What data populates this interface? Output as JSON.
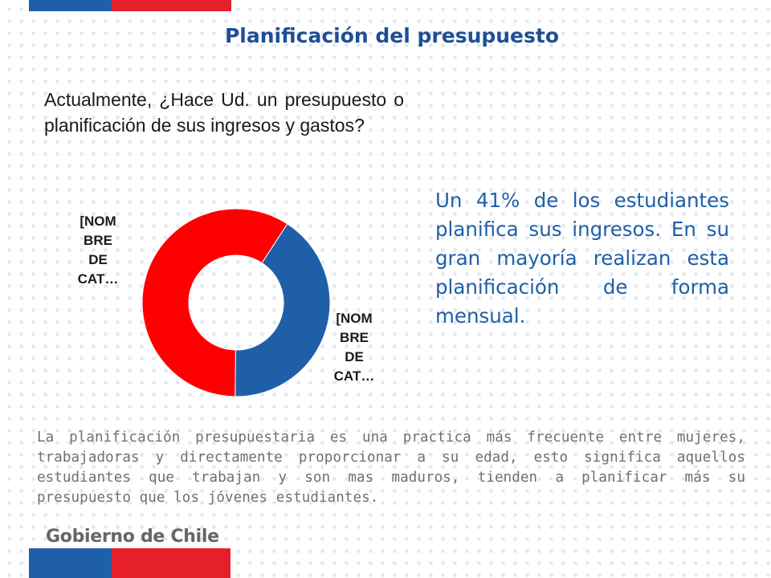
{
  "title": "Planificación del presupuesto",
  "question": "Actualmente, ¿Hace Ud. un presupuesto o planificación de sus ingresos y gastos?",
  "summary": "Un 41% de los estudiantes planifica sus ingresos. En su gran mayoría realizan esta planificación de forma mensual.",
  "conclusion": "La planificación presupuestaria es una practica más frecuente entre mujeres, trabajadoras y directamente proporcionar a su edad, esto significa aquellos estudiantes que trabajan y son mas maduros, tienden a planificar más su presupuesto que los jóvenes estudiantes.",
  "footer": {
    "brand": "Gobierno de Chile"
  },
  "colors": {
    "brand_blue": "#1f5fa8",
    "brand_red": "#e5202a",
    "slice_blue": "#1f5fa8",
    "slice_red": "#ff0000"
  },
  "chart_data": {
    "type": "pie",
    "style": "donut",
    "slices": [
      {
        "label": "[NOMBRE DE CAT…",
        "value": 41,
        "color": "#1f5fa8"
      },
      {
        "label": "[NOMBRE DE CAT…",
        "value": 59,
        "color": "#ff0000"
      }
    ],
    "legend": "none"
  }
}
